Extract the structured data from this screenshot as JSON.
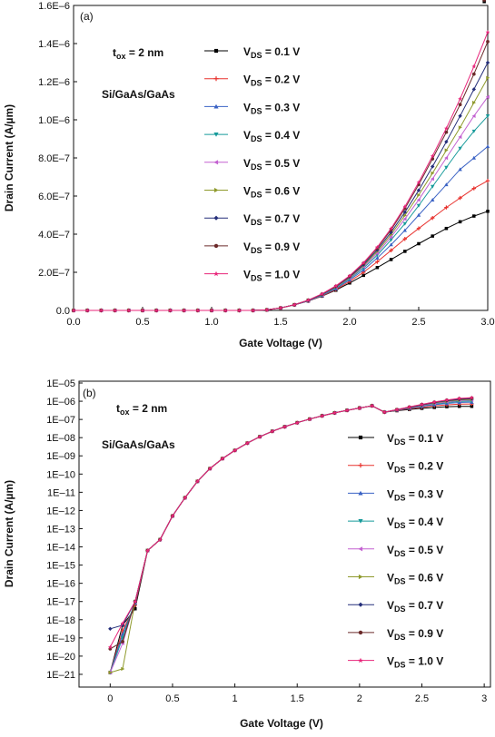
{
  "chart_data": [
    {
      "type": "line",
      "panel": "(a)",
      "xlabel": "Gate Voltage (V)",
      "ylabel": "Drain Current (A/µm)",
      "xlim": [
        0,
        3
      ],
      "ylim": [
        0,
        1.6e-06
      ],
      "scale_y": "linear",
      "xticks": [
        "0.0",
        "0.5",
        "1.0",
        "1.5",
        "2.0",
        "2.5",
        "3.0"
      ],
      "yticks": [
        "0.0",
        "2.0E–7",
        "4.0E–7",
        "6.0E–7",
        "8.0E–7",
        "1.0E–6",
        "1.2E–6",
        "1.4E–6",
        "1.6E–6"
      ],
      "annotations": {
        "tox_main": "t",
        "tox_sub": "ox",
        "tox_rest": " = 2 nm",
        "material": "Si/GaAs/GaAs"
      },
      "legend_position": "center",
      "x": [
        0,
        0.1,
        0.2,
        0.3,
        0.4,
        0.5,
        0.6,
        0.7,
        0.8,
        0.9,
        1.0,
        1.1,
        1.2,
        1.3,
        1.4,
        1.5,
        1.6,
        1.7,
        1.8,
        1.9,
        2.0,
        2.1,
        2.2,
        2.3,
        2.4,
        2.5,
        2.6,
        2.7,
        2.8,
        2.9,
        3.0
      ],
      "series": [
        {
          "name_main": "V",
          "name_sub": "DS",
          "name_rest": " = 0.1 V",
          "color": "#000000",
          "marker": "square",
          "values": [
            0,
            0,
            0,
            0,
            0,
            0,
            0,
            0,
            0,
            0,
            0,
            0,
            0,
            0,
            3e-09,
            1.3e-08,
            2.9e-08,
            4.9e-08,
            7.5e-08,
            1.06e-07,
            1.44e-07,
            1.84e-07,
            2.25e-07,
            2.67e-07,
            3.1e-07,
            3.5e-07,
            3.9e-07,
            4.3e-07,
            4.65e-07,
            4.95e-07,
            5.2e-07
          ]
        },
        {
          "name_main": "V",
          "name_sub": "DS",
          "name_rest": " = 0.2 V",
          "color": "#e8322e",
          "marker": "plus",
          "values": [
            0,
            0,
            0,
            0,
            0,
            0,
            0,
            0,
            0,
            0,
            0,
            0,
            0,
            0,
            3e-09,
            1.3e-08,
            2.9e-08,
            4.9e-08,
            7.6e-08,
            1.1e-07,
            1.52e-07,
            2e-07,
            2.55e-07,
            3.15e-07,
            3.75e-07,
            4.3e-07,
            4.85e-07,
            5.4e-07,
            5.9e-07,
            6.4e-07,
            6.8e-07
          ]
        },
        {
          "name_main": "V",
          "name_sub": "DS",
          "name_rest": " = 0.3 V",
          "color": "#3a62c4",
          "marker": "triangle-up",
          "values": [
            0,
            0,
            0,
            0,
            0,
            0,
            0,
            0,
            0,
            0,
            0,
            0,
            0,
            0,
            3e-09,
            1.3e-08,
            2.9e-08,
            5e-08,
            7.8e-08,
            1.14e-07,
            1.6e-07,
            2.12e-07,
            2.75e-07,
            3.45e-07,
            4.2e-07,
            5e-07,
            5.8e-07,
            6.6e-07,
            7.4e-07,
            8e-07,
            8.6e-07
          ]
        },
        {
          "name_main": "V",
          "name_sub": "DS",
          "name_rest": " = 0.4 V",
          "color": "#169a9a",
          "marker": "triangle-down",
          "values": [
            0,
            0,
            0,
            0,
            0,
            0,
            0,
            0,
            0,
            0,
            0,
            0,
            0,
            0,
            3e-09,
            1.3e-08,
            3e-08,
            5.1e-08,
            8e-08,
            1.18e-07,
            1.66e-07,
            2.22e-07,
            2.9e-07,
            3.7e-07,
            4.55e-07,
            5.5e-07,
            6.5e-07,
            7.5e-07,
            8.5e-07,
            9.4e-07,
            1.02e-06
          ]
        },
        {
          "name_main": "V",
          "name_sub": "DS",
          "name_rest": " = 0.5 V",
          "color": "#c361d1",
          "marker": "triangle-left",
          "values": [
            0,
            0,
            0,
            0,
            0,
            0,
            0,
            0,
            0,
            0,
            0,
            0,
            0,
            0,
            3e-09,
            1.3e-08,
            3e-08,
            5.2e-08,
            8.2e-08,
            1.21e-07,
            1.7e-07,
            2.3e-07,
            3e-07,
            3.85e-07,
            4.8e-07,
            5.8e-07,
            6.9e-07,
            8e-07,
            9.1e-07,
            1.02e-06,
            1.12e-06
          ]
        },
        {
          "name_main": "V",
          "name_sub": "DS",
          "name_rest": " = 0.6 V",
          "color": "#8f9a2c",
          "marker": "triangle-right",
          "values": [
            0,
            0,
            0,
            0,
            0,
            0,
            0,
            0,
            0,
            0,
            0,
            0,
            0,
            0,
            3e-09,
            1.3e-08,
            3e-08,
            5.3e-08,
            8.3e-08,
            1.23e-07,
            1.73e-07,
            2.35e-07,
            3.1e-07,
            3.98e-07,
            4.98e-07,
            6.05e-07,
            7.2e-07,
            8.4e-07,
            9.6e-07,
            1.09e-06,
            1.22e-06
          ]
        },
        {
          "name_main": "V",
          "name_sub": "DS",
          "name_rest": " = 0.7 V",
          "color": "#252f7a",
          "marker": "diamond",
          "values": [
            0,
            0,
            0,
            0,
            0,
            0,
            0,
            0,
            0,
            0,
            0,
            0,
            0,
            0,
            3e-09,
            1.3e-08,
            3e-08,
            5.3e-08,
            8.4e-08,
            1.25e-07,
            1.76e-07,
            2.4e-07,
            3.18e-07,
            4.1e-07,
            5.15e-07,
            6.3e-07,
            7.55e-07,
            8.85e-07,
            1.02e-06,
            1.16e-06,
            1.3e-06
          ]
        },
        {
          "name_main": "V",
          "name_sub": "DS",
          "name_rest": " = 0.9 V",
          "color": "#6b2a2a",
          "marker": "circle",
          "values": [
            0,
            0,
            0,
            0,
            0,
            0,
            0,
            0,
            0,
            0,
            0,
            0,
            0,
            0,
            3e-09,
            1.3e-08,
            3e-08,
            5.4e-08,
            8.6e-08,
            1.27e-07,
            1.8e-07,
            2.47e-07,
            3.27e-07,
            4.23e-07,
            5.35e-07,
            6.6e-07,
            7.95e-07,
            9.35e-07,
            1.08e-06,
            1.24e-06,
            1.41e-06
          ]
        },
        {
          "name_main": "V",
          "name_sub": "DS",
          "name_rest": " = 1.0 V",
          "color": "#e8247a",
          "marker": "star",
          "values": [
            0,
            0,
            0,
            0,
            0,
            0,
            0,
            0,
            0,
            0,
            0,
            0,
            0,
            0,
            3e-09,
            1.3e-08,
            3e-08,
            5.4e-08,
            8.7e-08,
            1.29e-07,
            1.82e-07,
            2.5e-07,
            3.32e-07,
            4.3e-07,
            5.45e-07,
            6.72e-07,
            8.1e-07,
            9.55e-07,
            1.11e-06,
            1.28e-06,
            1.46e-06
          ]
        }
      ]
    },
    {
      "type": "line",
      "panel": "(b)",
      "xlabel": "Gate Voltage (V)",
      "ylabel": "Drain Current (A/µm)",
      "xlim": [
        -0.25,
        3.05
      ],
      "ylim_log10": [
        -21.7,
        -4.9
      ],
      "scale_y": "log",
      "xticks": [
        "0",
        "0.5",
        "1",
        "1.5",
        "2",
        "2.5",
        "3"
      ],
      "yticks": [
        "1E–21",
        "1E–20",
        "1E–19",
        "1E–18",
        "1E–17",
        "1E–16",
        "1E–15",
        "1E–14",
        "1E–13",
        "1E–12",
        "1E–11",
        "1E–10",
        "1E–09",
        "1E–08",
        "1E–07",
        "1E–06",
        "1E–05"
      ],
      "annotations": {
        "tox_main": "t",
        "tox_sub": "ox",
        "tox_rest": " = 2 nm",
        "material": "Si/GaAs/GaAs"
      },
      "legend_position": "right",
      "x": [
        0,
        0.1,
        0.2,
        0.3,
        0.4,
        0.5,
        0.6,
        0.7,
        0.8,
        0.9,
        1.0,
        1.1,
        1.2,
        1.3,
        1.4,
        1.5,
        1.6,
        1.7,
        1.8,
        1.9,
        2.0,
        2.1,
        2.2,
        2.3,
        2.4,
        2.5,
        2.6,
        2.7,
        2.8,
        2.9,
        3.0
      ],
      "shared_log10_tail": [
        -13.6,
        -12.3,
        -11.3,
        -10.4,
        -9.7,
        -9.15,
        -8.7,
        -8.3,
        -7.95,
        -7.65,
        -7.4,
        -7.18,
        -6.98,
        -6.8,
        -6.64,
        -6.5,
        -6.37,
        -6.25
      ],
      "series": [
        {
          "name_main": "V",
          "name_sub": "DS",
          "name_rest": " = 0.1 V",
          "color": "#000000",
          "marker": "square",
          "values_log10_head": [
            -20.9,
            -18.3,
            -17.4,
            -14.2
          ],
          "values_log10_end": [
            -6.6,
            -6.52,
            -6.45,
            -6.39,
            -6.34,
            -6.3,
            -6.28,
            -6.28
          ]
        },
        {
          "name_main": "V",
          "name_sub": "DS",
          "name_rest": " = 0.2 V",
          "color": "#e8322e",
          "marker": "plus",
          "values_log10_head": [
            -20.9,
            -18.6,
            -17.2,
            -14.2
          ],
          "values_log10_end": [
            -6.6,
            -6.5,
            -6.41,
            -6.33,
            -6.25,
            -6.2,
            -6.16,
            -6.15
          ]
        },
        {
          "name_main": "V",
          "name_sub": "DS",
          "name_rest": " = 0.3 V",
          "color": "#3a62c4",
          "marker": "triangle-up",
          "values_log10_head": [
            -20.9,
            -18.8,
            -17.1,
            -14.2
          ],
          "values_log10_end": [
            -6.6,
            -6.49,
            -6.38,
            -6.28,
            -6.19,
            -6.12,
            -6.07,
            -6.05
          ]
        },
        {
          "name_main": "V",
          "name_sub": "DS",
          "name_rest": " = 0.4 V",
          "color": "#169a9a",
          "marker": "triangle-down",
          "values_log10_head": [
            -20.9,
            -19.0,
            -17.0,
            -14.2
          ],
          "values_log10_end": [
            -6.6,
            -6.48,
            -6.36,
            -6.25,
            -6.15,
            -6.07,
            -6.01,
            -5.99
          ]
        },
        {
          "name_main": "V",
          "name_sub": "DS",
          "name_rest": " = 0.5 V",
          "color": "#c361d1",
          "marker": "triangle-left",
          "values_log10_head": [
            -20.9,
            -19.3,
            -17.0,
            -14.2
          ],
          "values_log10_end": [
            -6.6,
            -6.48,
            -6.35,
            -6.23,
            -6.12,
            -6.03,
            -5.96,
            -5.94
          ]
        },
        {
          "name_main": "V",
          "name_sub": "DS",
          "name_rest": " = 0.6 V",
          "color": "#8f9a2c",
          "marker": "triangle-right",
          "values_log10_head": [
            -20.9,
            -20.7,
            -17.0,
            -14.2
          ],
          "values_log10_end": [
            -6.6,
            -6.47,
            -6.34,
            -6.21,
            -6.09,
            -6.0,
            -5.93,
            -5.9
          ]
        },
        {
          "name_main": "V",
          "name_sub": "DS",
          "name_rest": " = 0.7 V",
          "color": "#252f7a",
          "marker": "diamond",
          "values_log10_head": [
            -18.5,
            -18.3,
            -17.0,
            -14.2
          ],
          "values_log10_end": [
            -6.6,
            -6.47,
            -6.33,
            -6.2,
            -6.07,
            -5.97,
            -5.9,
            -5.86
          ]
        },
        {
          "name_main": "V",
          "name_sub": "DS",
          "name_rest": " = 0.9 V",
          "color": "#6b2a2a",
          "marker": "circle",
          "values_log10_head": [
            -19.6,
            -19.2,
            -17.0,
            -14.2
          ],
          "values_log10_end": [
            -6.6,
            -6.46,
            -6.32,
            -6.18,
            -6.05,
            -5.94,
            -5.86,
            -5.82
          ]
        },
        {
          "name_main": "V",
          "name_sub": "DS",
          "name_rest": " = 1.0 V",
          "color": "#e8247a",
          "marker": "star",
          "values_log10_head": [
            -19.5,
            -18.2,
            -17.0,
            -14.2
          ],
          "values_log10_end": [
            -6.6,
            -6.46,
            -6.31,
            -6.17,
            -6.04,
            -5.93,
            -5.84,
            -5.8
          ]
        }
      ]
    }
  ]
}
